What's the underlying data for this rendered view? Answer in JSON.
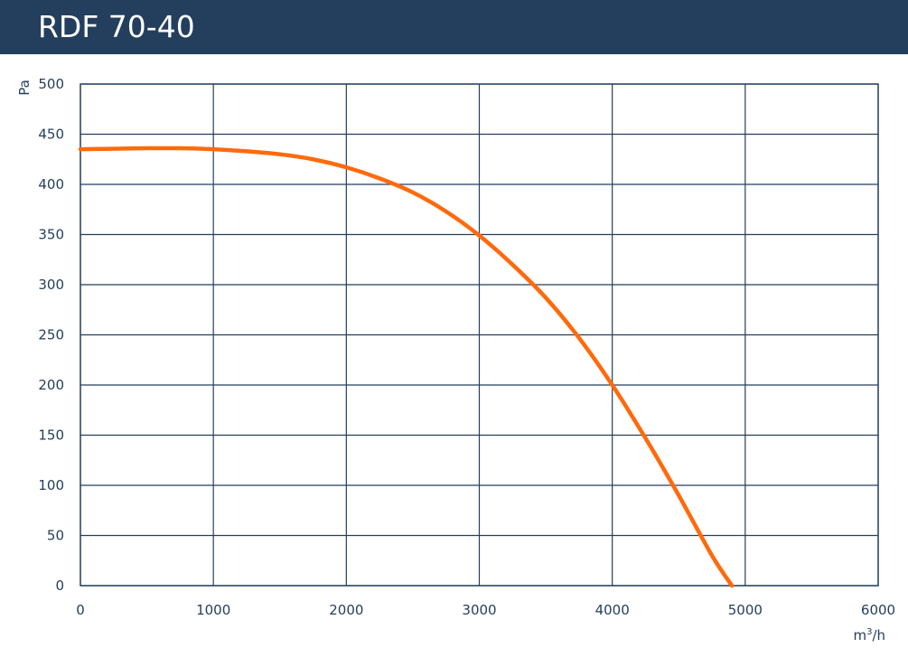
{
  "header": {
    "title": "RDF 70-40"
  },
  "colors": {
    "header_bg": "#243f5e",
    "curve": "#ff6a0d",
    "grid": "#243f5e",
    "text": "#243f5e"
  },
  "chart_data": {
    "type": "line",
    "title": "RDF 70-40",
    "xlabel": "m³/h",
    "ylabel": "Pa",
    "xlim": [
      0,
      6000
    ],
    "ylim": [
      0,
      500
    ],
    "x_ticks": [
      0,
      1000,
      2000,
      3000,
      4000,
      5000,
      6000
    ],
    "y_ticks": [
      0,
      50,
      100,
      150,
      200,
      250,
      300,
      350,
      400,
      450,
      500
    ],
    "grid": true,
    "series": [
      {
        "x": [
          0,
          250,
          500,
          750,
          1000,
          1250,
          1500,
          1750,
          2000,
          2250,
          2500,
          2750,
          3000,
          3250,
          3500,
          3750,
          4000,
          4250,
          4500,
          4750,
          4900
        ],
        "y": [
          435,
          435.5,
          436,
          436,
          435,
          433,
          430,
          425,
          417,
          406,
          392,
          373,
          349,
          320,
          287,
          247,
          200,
          147,
          90,
          30,
          0
        ]
      }
    ]
  }
}
